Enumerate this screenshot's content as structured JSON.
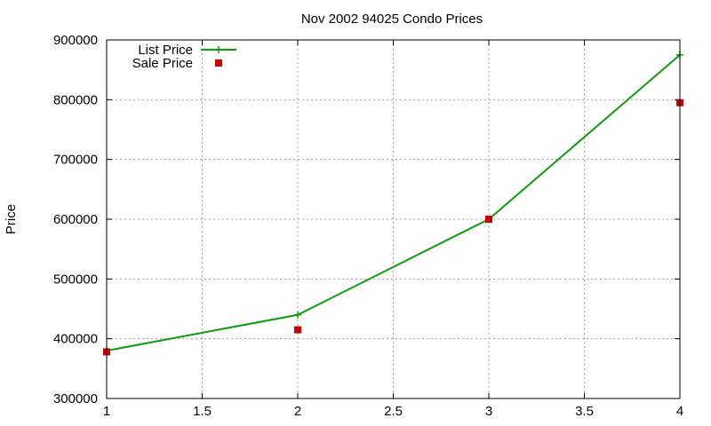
{
  "chart_data": {
    "type": "line",
    "title": "Nov 2002 94025 Condo Prices",
    "xlabel": "",
    "ylabel": "Price",
    "xlim": [
      1,
      4
    ],
    "ylim": [
      300000,
      900000
    ],
    "x_ticks": [
      1,
      1.5,
      2,
      2.5,
      3,
      3.5,
      4
    ],
    "x_tick_labels": [
      "1",
      "1.5",
      "2",
      "2.5",
      "3",
      "3.5",
      "4"
    ],
    "y_ticks": [
      300000,
      400000,
      500000,
      600000,
      700000,
      800000,
      900000
    ],
    "y_tick_labels": [
      "300000",
      "400000",
      "500000",
      "600000",
      "700000",
      "800000",
      "900000"
    ],
    "grid": true,
    "legend": "top-left",
    "series": [
      {
        "name": "List Price",
        "style": "line+cross",
        "color": "#119911",
        "x": [
          1,
          2,
          3,
          4
        ],
        "y": [
          380000,
          440000,
          600000,
          875000
        ]
      },
      {
        "name": "Sale Price",
        "style": "square-points",
        "color": "#cc0000",
        "x": [
          1,
          2,
          3,
          4
        ],
        "y": [
          378000,
          415000,
          600000,
          795000
        ]
      }
    ]
  }
}
